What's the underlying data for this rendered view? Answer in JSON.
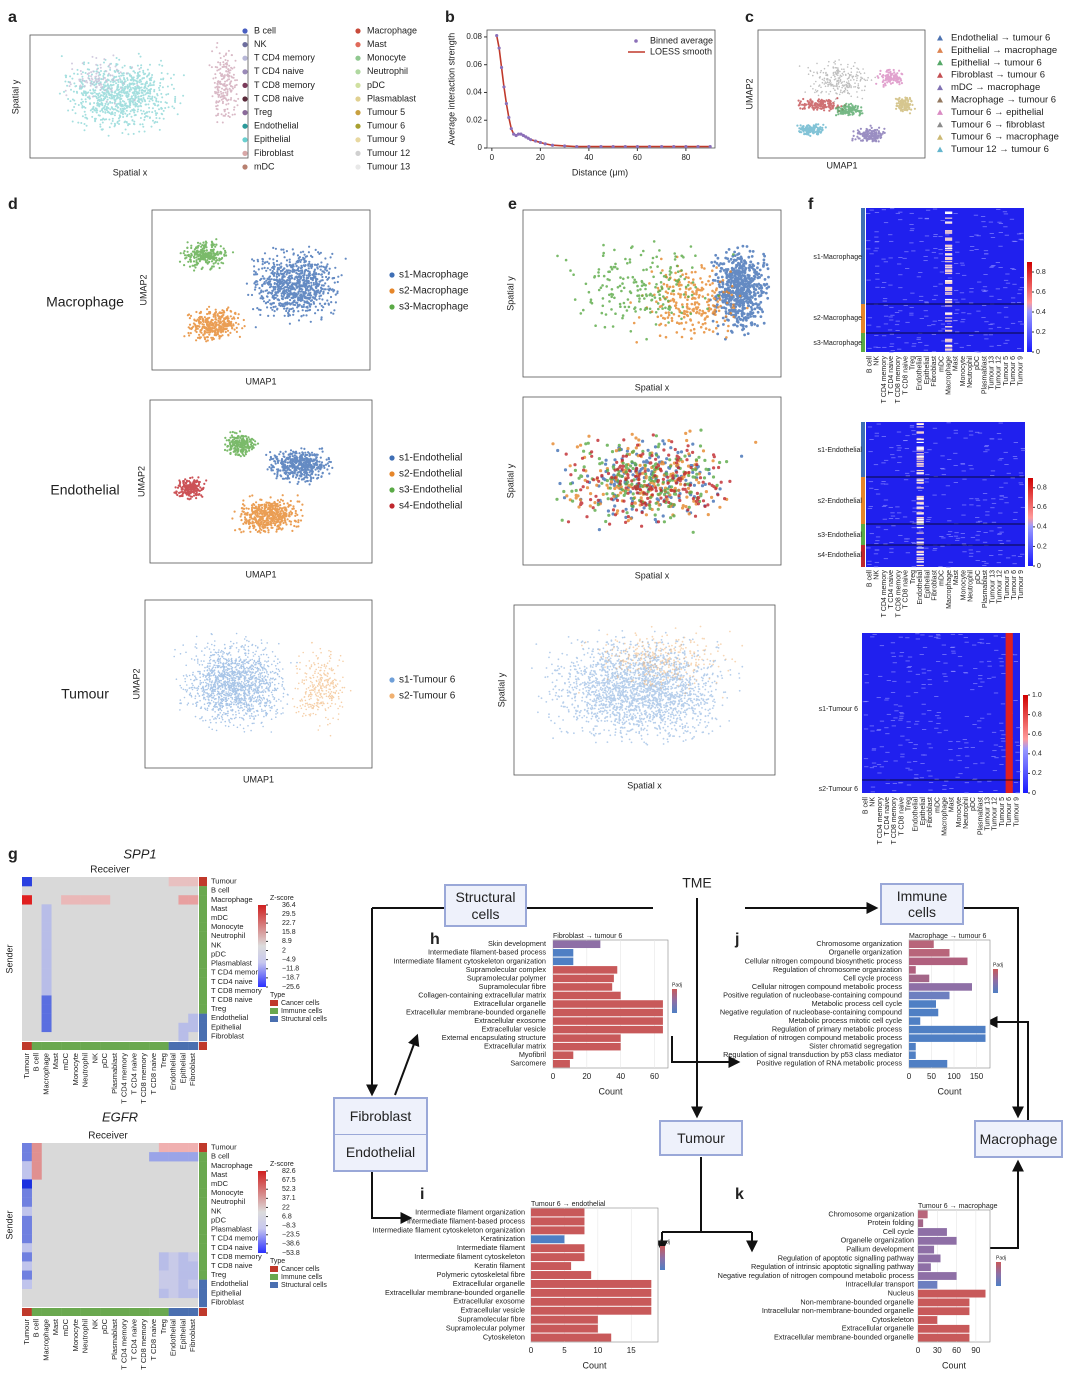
{
  "a": {
    "letter": "a",
    "x_label": "Spatial x",
    "y_label": "Spatial y",
    "legend": [
      {
        "name": "B cell",
        "color": "#4a5fc1"
      },
      {
        "name": "NK",
        "color": "#6e6e9e"
      },
      {
        "name": "T CD4 memory",
        "color": "#b8b8d8"
      },
      {
        "name": "T CD4 naive",
        "color": "#9a8ab8"
      },
      {
        "name": "T CD8 memory",
        "color": "#7a3a5a"
      },
      {
        "name": "T CD8 naive",
        "color": "#5a2a3a"
      },
      {
        "name": "Treg",
        "color": "#8a6a9a"
      },
      {
        "name": "Endothelial",
        "color": "#2a9a9a"
      },
      {
        "name": "Epithelial",
        "color": "#6ad0d0"
      },
      {
        "name": "Fibroblast",
        "color": "#d8a8a8"
      },
      {
        "name": "mDC",
        "color": "#b88070"
      },
      {
        "name": "Macrophage",
        "color": "#c84a3a"
      },
      {
        "name": "Mast",
        "color": "#e06a5a"
      },
      {
        "name": "Monocyte",
        "color": "#90c890"
      },
      {
        "name": "Neutrophil",
        "color": "#b0d8a0"
      },
      {
        "name": "pDC",
        "color": "#d0e0a0"
      },
      {
        "name": "Plasmablast",
        "color": "#e0d090"
      },
      {
        "name": "Tumour 5",
        "color": "#c8a040"
      },
      {
        "name": "Tumour 6",
        "color": "#a8a030"
      },
      {
        "name": "Tumour 9",
        "color": "#e8d8a0"
      },
      {
        "name": "Tumour 12",
        "color": "#d0d0d0"
      },
      {
        "name": "Tumour 13",
        "color": "#e8e8e8"
      }
    ]
  },
  "b": {
    "letter": "b",
    "type": "line",
    "x_label": "Distance (μm)",
    "y_label": "Average interaction strength",
    "x": [
      2,
      3,
      4,
      5,
      6,
      7,
      8,
      9,
      10,
      11,
      12,
      13,
      14,
      15,
      16,
      18,
      20,
      22,
      25,
      30,
      35,
      40,
      45,
      50,
      55,
      60,
      65,
      70,
      75,
      80,
      85,
      90
    ],
    "series": [
      {
        "name": "Binned average",
        "color": "#8b6fb8",
        "values": [
          0.081,
          0.072,
          0.058,
          0.044,
          0.032,
          0.022,
          0.014,
          0.01,
          0.009,
          0.01,
          0.01,
          0.009,
          0.008,
          0.007,
          0.006,
          0.005,
          0.004,
          0.003,
          0.002,
          0.0015,
          0.001,
          0.001,
          0.001,
          0.001,
          0.001,
          0.001,
          0.001,
          0.001,
          0.001,
          0.001,
          0.001,
          0.001
        ]
      },
      {
        "name": "LOESS smooth",
        "color": "#c0392b",
        "values": [
          0.081,
          0.072,
          0.058,
          0.044,
          0.032,
          0.022,
          0.014,
          0.01,
          0.009,
          0.01,
          0.01,
          0.009,
          0.008,
          0.007,
          0.006,
          0.005,
          0.004,
          0.003,
          0.002,
          0.0015,
          0.001,
          0.001,
          0.001,
          0.001,
          0.001,
          0.001,
          0.001,
          0.001,
          0.001,
          0.001,
          0.001,
          0.001
        ]
      }
    ],
    "xlim": [
      -2,
      92
    ],
    "ylim": [
      0,
      0.085
    ],
    "xticks": [
      0,
      20,
      40,
      60,
      80
    ],
    "yticks": [
      0,
      0.02,
      0.04,
      0.06,
      0.08
    ]
  },
  "c": {
    "letter": "c",
    "x_label": "UMAP1",
    "y_label": "UMAP2",
    "legend": [
      {
        "name": "Endothelial → tumour 6",
        "color": "#4c72b0"
      },
      {
        "name": "Epithelial → macrophage",
        "color": "#dd8452"
      },
      {
        "name": "Epithelial → tumour 6",
        "color": "#55a868"
      },
      {
        "name": "Fibroblast → tumour 6",
        "color": "#c44e52"
      },
      {
        "name": "mDC → macrophage",
        "color": "#8172b3"
      },
      {
        "name": "Macrophage → tumour 6",
        "color": "#937860"
      },
      {
        "name": "Tumour 6 → epithelial",
        "color": "#da8bc3"
      },
      {
        "name": "Tumour 6 → fibroblast",
        "color": "#8c8c8c"
      },
      {
        "name": "Tumour 6 → macrophage",
        "color": "#ccb974"
      },
      {
        "name": "Tumour 12 → tumour 6",
        "color": "#64b5cd"
      }
    ]
  },
  "d": {
    "letter": "d",
    "x_label": "UMAP1",
    "y_label": "UMAP2",
    "rows": [
      {
        "label": "Macrophage",
        "legend": [
          {
            "name": "s1-Macrophage",
            "color": "#3f6fb5"
          },
          {
            "name": "s2-Macrophage",
            "color": "#e6862a"
          },
          {
            "name": "s3-Macrophage",
            "color": "#5aaa46"
          }
        ]
      },
      {
        "label": "Endothelial",
        "legend": [
          {
            "name": "s1-Endothelial",
            "color": "#3f6fb5"
          },
          {
            "name": "s2-Endothelial",
            "color": "#e6862a"
          },
          {
            "name": "s3-Endothelial",
            "color": "#5aaa46"
          },
          {
            "name": "s4-Endothelial",
            "color": "#c0272d"
          }
        ]
      },
      {
        "label": "Tumour",
        "legend": [
          {
            "name": "s1-Tumour 6",
            "color": "#6f9fd8"
          },
          {
            "name": "s2-Tumour 6",
            "color": "#f0b070"
          }
        ]
      }
    ]
  },
  "e": {
    "letter": "e",
    "x_label": "Spatial x",
    "y_label": "Spatial y"
  },
  "f": {
    "letter": "f",
    "columns": [
      "B cell",
      "NK",
      "T CD4 memory",
      "T CD4 naive",
      "T CD8 memory",
      "T CD8 naive",
      "Treg",
      "Endothelial",
      "Epithelial",
      "Fibroblast",
      "mDC",
      "Macrophage",
      "Mast",
      "Monocyte",
      "Neutrophil",
      "pDC",
      "Plasmablast",
      "Tumour 13",
      "Tumour 12",
      "Tumour 5",
      "Tumour 6",
      "Tumour 9"
    ],
    "heatmaps": [
      {
        "rows": [
          "s1-Macrophage",
          "s2-Macrophage",
          "s3-Macrophage"
        ],
        "colorbar_ticks": [
          0,
          0.2,
          0.4,
          0.6,
          0.8
        ]
      },
      {
        "rows": [
          "s1-Endothelial",
          "s2-Endothelial",
          "s3-Endothelial",
          "s4-Endothelial"
        ],
        "colorbar_ticks": [
          0,
          0.2,
          0.4,
          0.6,
          0.8
        ]
      },
      {
        "rows": [
          "s1-Tumour 6",
          "s2-Tumour 6"
        ],
        "colorbar_ticks": [
          0,
          0.2,
          0.4,
          0.6,
          0.8,
          {
            "value": 1,
            "label": "1.0"
          }
        ]
      }
    ]
  },
  "g": {
    "letter": "g",
    "receiver": "Receiver",
    "sender": "Sender",
    "z_label": "Z-score",
    "type_label": "Type",
    "types": [
      {
        "name": "Cancer cells",
        "color": "#c0392b"
      },
      {
        "name": "Immune cells",
        "color": "#6aa84f"
      },
      {
        "name": "Structural cells",
        "color": "#4a6fb0"
      }
    ],
    "cell_types": [
      "Tumour",
      "B cell",
      "Macrophage",
      "Mast",
      "mDC",
      "Monocyte",
      "Neutrophil",
      "NK",
      "pDC",
      "Plasmablast",
      "T CD4 memory",
      "T CD4 naive",
      "T CD8 memory",
      "T CD8 naive",
      "Treg",
      "Endothelial",
      "Epithelial",
      "Fibroblast"
    ],
    "maps": [
      {
        "gene": "SPP1",
        "z_ticks": [
          36.4,
          29.5,
          22.7,
          15.8,
          8.9,
          2.0,
          {
            "value": -4.9,
            "label": "−4.9"
          },
          {
            "value": -11.8,
            "label": "−11.8"
          },
          {
            "value": -18.7,
            "label": "−18.7"
          },
          {
            "value": -25.6,
            "label": "−25.6"
          }
        ]
      },
      {
        "gene": "EGFR",
        "z_ticks": [
          82.6,
          67.5,
          52.3,
          37.1,
          22.0,
          6.8,
          {
            "value": -8.3,
            "label": "−8.3"
          },
          {
            "value": -23.5,
            "label": "−23.5"
          },
          {
            "value": -38.6,
            "label": "−38.6"
          },
          {
            "value": -53.8,
            "label": "−53.8"
          }
        ]
      }
    ]
  },
  "flow": {
    "tme": "TME",
    "structural": "Structural cells",
    "immune": "Immune cells",
    "fibroblast": "Fibroblast",
    "endothelial": "Endothelial",
    "tumour": "Tumour",
    "macrophage": "Macrophage"
  },
  "h": {
    "letter": "h",
    "type": "barh",
    "title": "Fibroblast → tumour 6",
    "x_label": "Count",
    "legend_title": "Padj",
    "xlim": [
      0,
      68
    ],
    "xticks": [
      0,
      20,
      40,
      60
    ],
    "categories": [
      "Skin development",
      "Intermediate filament-based process",
      "Intermediate filament cytoskeleton organization",
      "Supramolecular complex",
      "Supramolecular polymer",
      "Supramolecular fibre",
      "Collagen-containing extracellular matrix",
      "Extracellular organelle",
      "Extracellular membrane-bounded organelle",
      "Extracellular exosome",
      "Extracellular vesicle",
      "External encapsulating structure",
      "Extracellular matrix",
      "Myofibril",
      "Sarcomere"
    ],
    "values": [
      28,
      12,
      12,
      38,
      36,
      35,
      40,
      65,
      65,
      65,
      65,
      40,
      40,
      12,
      10
    ],
    "colors": [
      "#8e6fa6",
      "#4f7fc4",
      "#4f7fc4",
      "#c8595a",
      "#c8595a",
      "#c8595a",
      "#c8595a",
      "#c8595a",
      "#c8595a",
      "#c8595a",
      "#c8595a",
      "#c8595a",
      "#c8595a",
      "#c8595a",
      "#c8595a"
    ]
  },
  "i": {
    "letter": "i",
    "type": "barh",
    "title": "Tumour 6 → endothelial",
    "x_label": "Count",
    "legend_title": "Padj",
    "xlim": [
      0,
      19
    ],
    "xticks": [
      0,
      5,
      10,
      15
    ],
    "categories": [
      "Intermediate filament organization",
      "Intermediate filament-based process",
      "Intermediate filament cytoskeleton organization",
      "Keratinization",
      "Intermediate filament",
      "Intermediate filament cytoskeleton",
      "Keratin filament",
      "Polymeric cytoskeletal fibre",
      "Extracellular organelle",
      "Extracellular membrane-bounded organelle",
      "Extracellular exosome",
      "Extracellular vesicle",
      "Supramolecular fibre",
      "Supramolecular polymer",
      "Cytoskeleton"
    ],
    "values": [
      8,
      8,
      8,
      5,
      8,
      8,
      6,
      9,
      18,
      18,
      18,
      18,
      10,
      10,
      12
    ],
    "colors": [
      "#c8595a",
      "#c8595a",
      "#c8595a",
      "#4f7fc4",
      "#c8595a",
      "#c8595a",
      "#c8595a",
      "#c8595a",
      "#c8595a",
      "#c8595a",
      "#c8595a",
      "#c8595a",
      "#c8595a",
      "#c8595a",
      "#c8595a"
    ]
  },
  "j": {
    "letter": "j",
    "type": "barh",
    "title": "Macrophage → tumour 6",
    "x_label": "Count",
    "legend_title": "Padj",
    "xlim": [
      0,
      180
    ],
    "xticks": [
      0,
      50,
      100,
      150
    ],
    "categories": [
      "Chromosome organization",
      "Organelle organization",
      "Cellular nitrogen compound biosynthetic process",
      "Regulation of chromosome organization",
      "Cell cycle process",
      "Cellular nitrogen compound metabolic process",
      "Positive regulation of nucleobase-containing compound",
      "Metabolic process cell cycle",
      "Negative regulation of nucleobase-containing compound",
      "Metabolic process mitotic cell cycle",
      "Regulation of primary metabolic process",
      "Regulation of nitrogen compound metabolic process",
      "Sister chromatid segregation",
      "Regulation of signal transduction by p53 class mediator",
      "Positive regulation of RNA metabolic process"
    ],
    "values": [
      55,
      90,
      130,
      15,
      45,
      140,
      90,
      60,
      65,
      25,
      170,
      170,
      15,
      15,
      85
    ],
    "colors": [
      "#b8657a",
      "#b8657a",
      "#b0607e",
      "#b0607e",
      "#a36688",
      "#8e6fa6",
      "#6d7fc0",
      "#4f7fc4",
      "#4f7fc4",
      "#4f7fc4",
      "#4f7fc4",
      "#4f7fc4",
      "#4f7fc4",
      "#4f7fc4",
      "#4f7fc4"
    ]
  },
  "k": {
    "letter": "k",
    "type": "barh",
    "title": "Tumour 6 → macrophage",
    "x_label": "Count",
    "legend_title": "Padj",
    "xlim": [
      0,
      112
    ],
    "xticks": [
      0,
      30,
      60,
      90
    ],
    "categories": [
      "Chromosome organization",
      "Protein folding",
      "Cell cycle",
      "Organelle organization",
      "Pallium development",
      "Regulation of apoptotic signalling pathway",
      "Regulation of intrinsic apoptotic signalling pathway",
      "Negative regulation of nitrogen compound metabolic process",
      "Intracellular transport",
      "Nucleus",
      "Non-membrane-bounded organelle",
      "Intracellular non-membrane-bounded organelle",
      "Cytoskeleton",
      "Extracellular organelle",
      "Extracellular membrane-bounded organelle"
    ],
    "values": [
      15,
      8,
      45,
      60,
      25,
      35,
      20,
      60,
      30,
      105,
      80,
      80,
      30,
      80,
      80
    ],
    "colors": [
      "#b8657a",
      "#a36688",
      "#8e6fa6",
      "#8e6fa6",
      "#8e6fa6",
      "#8e6fa6",
      "#8e6fa6",
      "#8e6fa6",
      "#6d7fc0",
      "#c8595a",
      "#c8595a",
      "#c8595a",
      "#c8595a",
      "#c8595a",
      "#c8595a"
    ]
  }
}
